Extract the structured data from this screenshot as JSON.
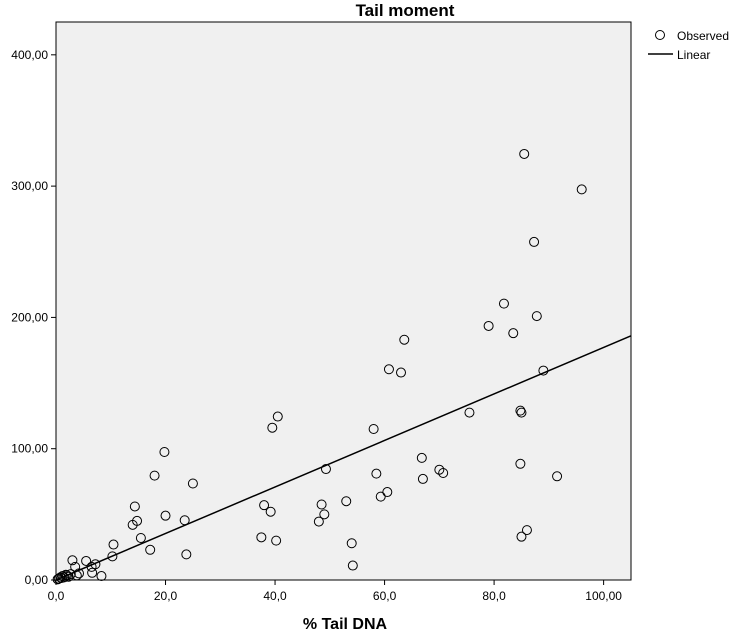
{
  "chart_data": {
    "type": "scatter",
    "title": "Tail moment",
    "xlabel": "% Tail DNA",
    "ylabel": "",
    "xlim": [
      0,
      105
    ],
    "ylim": [
      0,
      425
    ],
    "xticks": [
      0,
      20,
      40,
      60,
      80,
      100
    ],
    "xtick_labels": [
      "0,0",
      "20,0",
      "40,0",
      "60,0",
      "80,0",
      "100,00"
    ],
    "yticks": [
      0,
      100,
      200,
      300,
      400
    ],
    "ytick_labels": [
      "0,00",
      "100,00",
      "200,00",
      "300,00",
      "400,00"
    ],
    "grid": false,
    "legend": {
      "position": "top-right",
      "entries": [
        "Observed",
        "Linear"
      ]
    },
    "colors": {
      "plot_bg": "#f0f0f0",
      "marker_stroke": "#000000",
      "line": "#000000"
    },
    "series": [
      {
        "name": "Observed",
        "kind": "points",
        "points": [
          [
            0.3,
            0.5
          ],
          [
            0.5,
            1.0
          ],
          [
            0.8,
            2.0
          ],
          [
            1.0,
            1.5
          ],
          [
            1.2,
            3.0
          ],
          [
            1.5,
            2.0
          ],
          [
            1.8,
            4.0
          ],
          [
            2.0,
            3.5
          ],
          [
            2.3,
            2.5
          ],
          [
            2.7,
            4.5
          ],
          [
            3.0,
            15.0
          ],
          [
            3.5,
            10.0
          ],
          [
            3.8,
            3.5
          ],
          [
            4.2,
            5.0
          ],
          [
            5.5,
            14.5
          ],
          [
            6.5,
            10.0
          ],
          [
            6.6,
            5.5
          ],
          [
            7.2,
            12.0
          ],
          [
            8.3,
            3.0
          ],
          [
            10.3,
            18.0
          ],
          [
            10.5,
            27.0
          ],
          [
            14.0,
            42.0
          ],
          [
            14.4,
            56.0
          ],
          [
            14.8,
            45.0
          ],
          [
            15.5,
            32.0
          ],
          [
            17.2,
            23.0
          ],
          [
            18.0,
            79.5
          ],
          [
            19.8,
            97.5
          ],
          [
            20.0,
            49.0
          ],
          [
            23.5,
            45.5
          ],
          [
            23.8,
            19.5
          ],
          [
            25.0,
            73.5
          ],
          [
            37.5,
            32.5
          ],
          [
            38.0,
            57.0
          ],
          [
            39.2,
            52.0
          ],
          [
            39.5,
            116.0
          ],
          [
            40.2,
            30.0
          ],
          [
            40.5,
            124.5
          ],
          [
            48.0,
            44.5
          ],
          [
            48.5,
            57.5
          ],
          [
            49.0,
            50.0
          ],
          [
            49.3,
            84.5
          ],
          [
            53.0,
            60.0
          ],
          [
            54.0,
            28.0
          ],
          [
            54.2,
            11.0
          ],
          [
            58.0,
            115.0
          ],
          [
            58.5,
            81.0
          ],
          [
            59.3,
            63.5
          ],
          [
            60.5,
            67.0
          ],
          [
            60.8,
            160.5
          ],
          [
            63.0,
            158.0
          ],
          [
            63.6,
            183.0
          ],
          [
            66.8,
            93.0
          ],
          [
            67.0,
            77.0
          ],
          [
            70.0,
            84.0
          ],
          [
            70.7,
            81.5
          ],
          [
            75.5,
            127.5
          ],
          [
            79.0,
            193.5
          ],
          [
            81.8,
            210.5
          ],
          [
            83.5,
            188.0
          ],
          [
            84.8,
            129.0
          ],
          [
            84.8,
            88.5
          ],
          [
            85.0,
            127.5
          ],
          [
            85.0,
            33.0
          ],
          [
            85.5,
            324.5
          ],
          [
            86.0,
            38.0
          ],
          [
            87.3,
            257.5
          ],
          [
            87.8,
            201.0
          ],
          [
            89.0,
            159.5
          ],
          [
            91.5,
            79.0
          ],
          [
            96.0,
            297.5
          ]
        ]
      },
      {
        "name": "Linear",
        "kind": "line",
        "points": [
          [
            0,
            0
          ],
          [
            105,
            186
          ]
        ]
      }
    ]
  }
}
